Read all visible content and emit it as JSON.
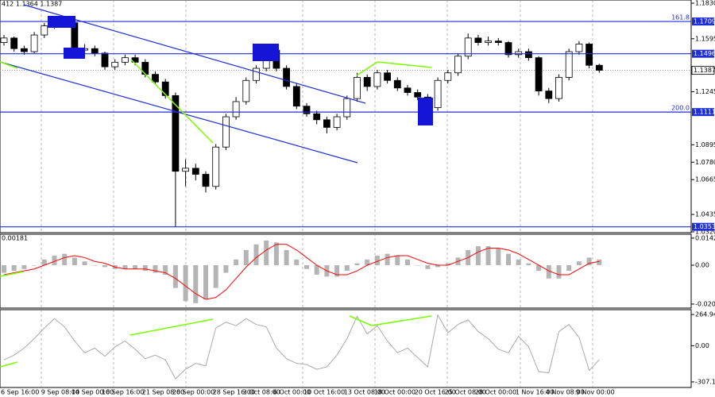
{
  "chart_data": [
    {
      "type": "candlestick",
      "title": "412 1.1364 1.1387",
      "color": "#000000",
      "level_color": "#1f2fd6",
      "categories": [
        "6 Sep 16:00",
        null,
        null,
        null,
        "9 Sep 08:00",
        null,
        null,
        "14 Sep 00:00",
        null,
        null,
        "16 Sep 16:00",
        null,
        null,
        null,
        "21 Sep 08:00",
        null,
        null,
        "26 Sep 00:00",
        null,
        null,
        null,
        "28 Sep 16:00",
        null,
        null,
        "3 Oct 08:00",
        null,
        null,
        "6 Oct 00:00",
        null,
        null,
        "10 Oct 16:00",
        null,
        null,
        null,
        "13 Oct 08:00",
        null,
        null,
        "18 Oct 00:00",
        null,
        null,
        null,
        "20 Oct 16:00",
        null,
        null,
        "25 Oct 08:00",
        null,
        null,
        "28 Oct 00:00",
        null,
        null,
        null,
        "1 Nov 16:00",
        null,
        null,
        "4 Nov 08:00",
        null,
        null,
        "9 Nov 00:00",
        null,
        null
      ],
      "open": [
        1.157,
        1.16,
        1.153,
        1.151,
        1.162,
        1.168,
        1.171,
        1.17,
        1.152,
        1.153,
        1.15,
        1.141,
        1.144,
        1.147,
        1.144,
        1.136,
        1.131,
        1.122,
        1.072,
        1.074,
        1.07,
        1.062,
        1.088,
        1.108,
        1.118,
        1.132,
        1.14,
        1.152,
        1.14,
        1.128,
        1.115,
        1.11,
        1.106,
        1.101,
        1.108,
        1.12,
        1.134,
        1.128,
        1.137,
        1.132,
        1.127,
        1.124,
        1.121,
        1.114,
        1.132,
        1.137,
        1.148,
        1.16,
        1.157,
        1.158,
        1.157,
        1.149,
        1.151,
        1.147,
        1.125,
        1.12,
        1.134,
        1.151,
        1.156,
        1.142
      ],
      "high": [
        1.162,
        1.161,
        1.155,
        1.164,
        1.17,
        1.1735,
        1.173,
        1.171,
        1.156,
        1.155,
        1.151,
        1.146,
        1.149,
        1.149,
        1.146,
        1.138,
        1.133,
        1.124,
        1.08,
        1.077,
        1.072,
        1.09,
        1.11,
        1.121,
        1.134,
        1.142,
        1.1535,
        1.154,
        1.142,
        1.13,
        1.117,
        1.112,
        1.108,
        1.11,
        1.122,
        1.137,
        1.136,
        1.139,
        1.139,
        1.134,
        1.129,
        1.126,
        1.123,
        1.134,
        1.139,
        1.15,
        1.163,
        1.162,
        1.161,
        1.16,
        1.158,
        1.153,
        1.153,
        1.148,
        1.127,
        1.136,
        1.153,
        1.158,
        1.157,
        1.143
      ],
      "low": [
        1.155,
        1.151,
        1.149,
        1.15,
        1.16,
        1.166,
        1.168,
        1.15,
        1.15,
        1.148,
        1.139,
        1.139,
        1.142,
        1.142,
        1.134,
        1.129,
        1.12,
        1.0355,
        1.062,
        1.066,
        1.058,
        1.06,
        1.086,
        1.106,
        1.116,
        1.13,
        1.138,
        1.138,
        1.126,
        1.113,
        1.108,
        1.103,
        1.097,
        1.099,
        1.106,
        1.118,
        1.125,
        1.126,
        1.13,
        1.125,
        1.122,
        1.119,
        1.111,
        1.112,
        1.13,
        1.135,
        1.146,
        1.155,
        1.155,
        1.155,
        1.147,
        1.147,
        1.145,
        1.122,
        1.117,
        1.118,
        1.132,
        1.149,
        1.14,
        1.137
      ],
      "close": [
        1.16,
        1.153,
        1.151,
        1.162,
        1.168,
        1.171,
        1.17,
        1.152,
        1.153,
        1.15,
        1.141,
        1.144,
        1.147,
        1.144,
        1.136,
        1.131,
        1.122,
        1.072,
        1.074,
        1.07,
        1.062,
        1.088,
        1.108,
        1.118,
        1.132,
        1.14,
        1.152,
        1.14,
        1.128,
        1.115,
        1.11,
        1.106,
        1.101,
        1.108,
        1.12,
        1.134,
        1.128,
        1.137,
        1.132,
        1.127,
        1.124,
        1.121,
        1.114,
        1.132,
        1.137,
        1.148,
        1.16,
        1.157,
        1.158,
        1.157,
        1.149,
        1.151,
        1.147,
        1.125,
        1.12,
        1.134,
        1.151,
        1.156,
        1.142,
        1.1387
      ],
      "ylim": [
        1.032,
        1.183
      ],
      "yticks": [
        {
          "value": 1.183,
          "label": "1.1830"
        },
        1.1595,
        1.1245,
        1.0895,
        {
          "value": 1.078,
          "label": "1.0780"
        },
        1.0665,
        1.0435,
        {
          "value": 1.032,
          "label": "1.0320"
        }
      ],
      "levels": [
        {
          "value": 1.1709,
          "note": "161.8"
        },
        {
          "value": 1.1496
        },
        {
          "value": 1.1111,
          "note": "200.0"
        },
        {
          "value": 1.0353
        }
      ],
      "current": 1.1387
    },
    {
      "type": "macd",
      "current": 0.00181,
      "color": "#b4b4b4",
      "signal_color": "#ff0000",
      "values": [
        -0.004,
        -0.003,
        -0.002,
        0.0,
        0.003,
        0.005,
        0.006,
        0.004,
        0.002,
        0.0,
        -0.001,
        -0.002,
        -0.002,
        -0.002,
        -0.003,
        -0.004,
        -0.005,
        -0.012,
        -0.019,
        -0.02,
        -0.018,
        -0.012,
        -0.004,
        0.003,
        0.008,
        0.011,
        0.013,
        0.012,
        0.008,
        0.003,
        -0.002,
        -0.005,
        -0.006,
        -0.006,
        -0.003,
        0.001,
        0.003,
        0.005,
        0.006,
        0.005,
        0.003,
        0.0,
        -0.002,
        -0.001,
        0.001,
        0.004,
        0.008,
        0.01,
        0.01,
        0.009,
        0.006,
        0.003,
        0.001,
        -0.003,
        -0.007,
        -0.007,
        -0.003,
        0.002,
        0.004,
        0.003
      ],
      "signal": [
        -0.005,
        -0.004,
        -0.003,
        -0.002,
        0.0,
        0.002,
        0.004,
        0.005,
        0.004,
        0.002,
        0.001,
        -0.001,
        -0.002,
        -0.002,
        -0.002,
        -0.003,
        -0.004,
        -0.007,
        -0.011,
        -0.015,
        -0.018,
        -0.017,
        -0.013,
        -0.007,
        -0.001,
        0.004,
        0.008,
        0.011,
        0.011,
        0.008,
        0.004,
        0.0,
        -0.003,
        -0.005,
        -0.005,
        -0.003,
        0.0,
        0.002,
        0.004,
        0.005,
        0.005,
        0.003,
        0.001,
        0.0,
        0.0,
        0.002,
        0.004,
        0.007,
        0.009,
        0.009,
        0.008,
        0.006,
        0.003,
        0.0,
        -0.003,
        -0.005,
        -0.005,
        -0.002,
        0.001,
        0.002
      ],
      "ylim": [
        -0.0226,
        0.0159
      ],
      "yticks": [
        0.01427,
        {
          "value": 0,
          "label": "0.00"
        },
        -0.02049
      ]
    },
    {
      "type": "line",
      "color": "#a9a9a9",
      "values": [
        -120,
        -80,
        -20,
        60,
        150,
        230,
        160,
        40,
        -60,
        -20,
        -90,
        -10,
        40,
        -30,
        -110,
        -80,
        -120,
        -280,
        -200,
        -150,
        -170,
        150,
        200,
        170,
        230,
        180,
        160,
        -20,
        -110,
        -150,
        -160,
        -200,
        -180,
        -80,
        60,
        250,
        100,
        170,
        40,
        -60,
        -20,
        -100,
        -180,
        260,
        110,
        180,
        220,
        120,
        60,
        -30,
        -60,
        80,
        -10,
        -220,
        -230,
        120,
        180,
        70,
        -210,
        -120
      ],
      "ylim": [
        -368,
        306
      ],
      "yticks": [
        264.9492,
        {
          "value": 0,
          "label": "0.00"
        },
        -307.142
      ]
    }
  ]
}
